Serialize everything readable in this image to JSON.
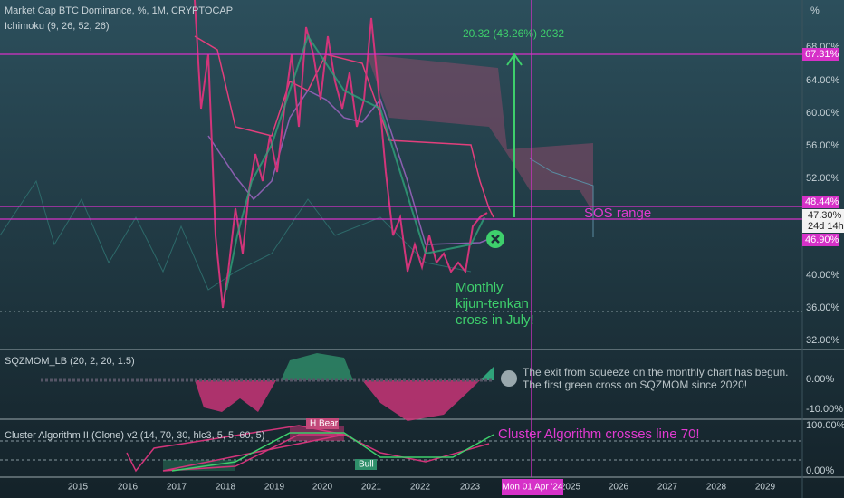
{
  "header": {
    "symbol": "Market Cap BTC Dominance, %, 1M, CRYPTOCAP",
    "indicator": "Ichimoku (9, 26, 52, 26)",
    "unit": "%"
  },
  "price_axis": {
    "labels": [
      "68.00%",
      "64.00%",
      "60.00%",
      "56.00%",
      "52.00%",
      "40.00%",
      "36.00%",
      "32.00%"
    ],
    "badges": [
      "67.31%",
      "48.44%",
      "47.30%",
      "24d 14h",
      "46.90%"
    ]
  },
  "annotations": {
    "measure": "20.32 (43.26%) 2032",
    "sos": "SOS range",
    "cross_note": [
      "Monthly",
      "kijun-tenkan",
      "cross in July!"
    ]
  },
  "sqzmom": {
    "title": "SQZMOM_LB (20, 2, 20, 1.5)",
    "note": [
      "The exit from squeeze on the monthly chart has begun.",
      "The first green cross on SQZMOM since 2020!"
    ],
    "labels": [
      "0.00%",
      "-10.00%"
    ]
  },
  "cluster": {
    "title": "Cluster Algorithm II (Clone) v2 (14, 70, 30, hlc3, 5, 5, 60, 5)",
    "note": "Cluster Algorithm crosses line 70!",
    "labels": [
      "100.00%",
      "0.00%"
    ],
    "bear": "H Bear",
    "bull": "Bull"
  },
  "time_axis": {
    "labels": [
      "2015",
      "2016",
      "2017",
      "2018",
      "2019",
      "2020",
      "2021",
      "2022",
      "2023",
      "2025",
      "2026",
      "2027",
      "2028",
      "2029"
    ],
    "cursor": "Mon 01 Apr '24"
  }
}
